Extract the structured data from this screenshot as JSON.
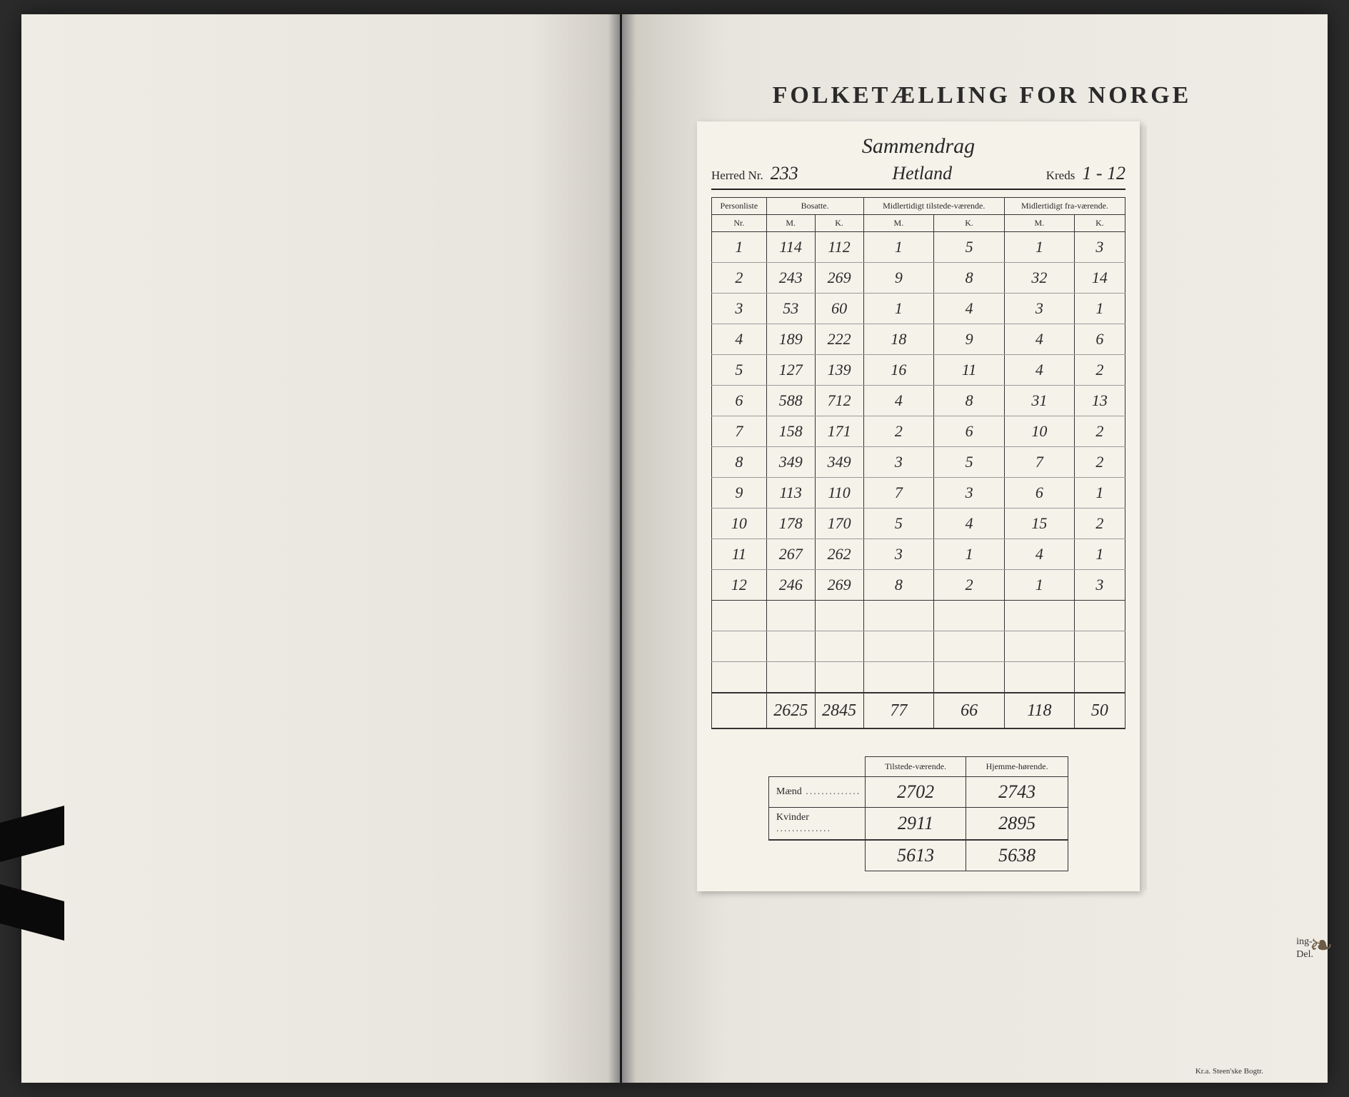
{
  "background_title": "FOLKETÆLLING FOR NORGE",
  "form": {
    "summary_label": "Sammendrag",
    "herred_label": "Herred Nr.",
    "herred_nr": "233",
    "herred_name": "Hetland",
    "kreds_label": "Kreds",
    "kreds_range": "1 - 12",
    "columns": {
      "personliste": "Personliste",
      "nr": "Nr.",
      "bosatte": "Bosatte.",
      "midl_tilstede": "Midlertidigt tilstede-værende.",
      "midl_fra": "Midlertidigt fra-værende.",
      "m": "M.",
      "k": "K."
    },
    "rows": [
      {
        "nr": "1",
        "bm": "114",
        "bk": "112",
        "tm": "1",
        "tk": "5",
        "fm": "1",
        "fk": "3"
      },
      {
        "nr": "2",
        "bm": "243",
        "bk": "269",
        "tm": "9",
        "tk": "8",
        "fm": "32",
        "fk": "14"
      },
      {
        "nr": "3",
        "bm": "53",
        "bk": "60",
        "tm": "1",
        "tk": "4",
        "fm": "3",
        "fk": "1"
      },
      {
        "nr": "4",
        "bm": "189",
        "bk": "222",
        "tm": "18",
        "tk": "9",
        "fm": "4",
        "fk": "6"
      },
      {
        "nr": "5",
        "bm": "127",
        "bk": "139",
        "tm": "16",
        "tk": "11",
        "fm": "4",
        "fk": "2"
      },
      {
        "nr": "6",
        "bm": "588",
        "bk": "712",
        "tm": "4",
        "tk": "8",
        "fm": "31",
        "fk": "13"
      },
      {
        "nr": "7",
        "bm": "158",
        "bk": "171",
        "tm": "2",
        "tk": "6",
        "fm": "10",
        "fk": "2"
      },
      {
        "nr": "8",
        "bm": "349",
        "bk": "349",
        "tm": "3",
        "tk": "5",
        "fm": "7",
        "fk": "2"
      },
      {
        "nr": "9",
        "bm": "113",
        "bk": "110",
        "tm": "7",
        "tk": "3",
        "fm": "6",
        "fk": "1"
      },
      {
        "nr": "10",
        "bm": "178",
        "bk": "170",
        "tm": "5",
        "tk": "4",
        "fm": "15",
        "fk": "2"
      },
      {
        "nr": "11",
        "bm": "267",
        "bk": "262",
        "tm": "3",
        "tk": "1",
        "fm": "4",
        "fk": "1"
      },
      {
        "nr": "12",
        "bm": "246",
        "bk": "269",
        "tm": "8",
        "tk": "2",
        "fm": "1",
        "fk": "3"
      }
    ],
    "totals": {
      "bm": "2625",
      "bk": "2845",
      "tm": "77",
      "tk": "66",
      "fm": "118",
      "fk": "50"
    },
    "summary_table": {
      "col_tilstede": "Tilstede-værende.",
      "col_hjemme": "Hjemme-hørende.",
      "maend_label": "Mænd",
      "kvinder_label": "Kvinder",
      "maend_t": "2702",
      "maend_h": "2743",
      "kvinder_t": "2911",
      "kvinder_h": "2895",
      "total_t": "5613",
      "total_h": "5638"
    }
  },
  "side_text_1": "ing-",
  "side_text_2": "Del.",
  "printer_line": "Kr.a.  Steen'ske Bogtr.",
  "colors": {
    "paper": "#f5f2ea",
    "ink": "#282828",
    "page_bg": "#e8e5de",
    "rule": "#333333"
  },
  "typography": {
    "printed_font": "Georgia / Times",
    "handwritten_font": "cursive script",
    "title_size_pt": 34,
    "header_size_pt": 17,
    "cell_script_size_pt": 22
  }
}
